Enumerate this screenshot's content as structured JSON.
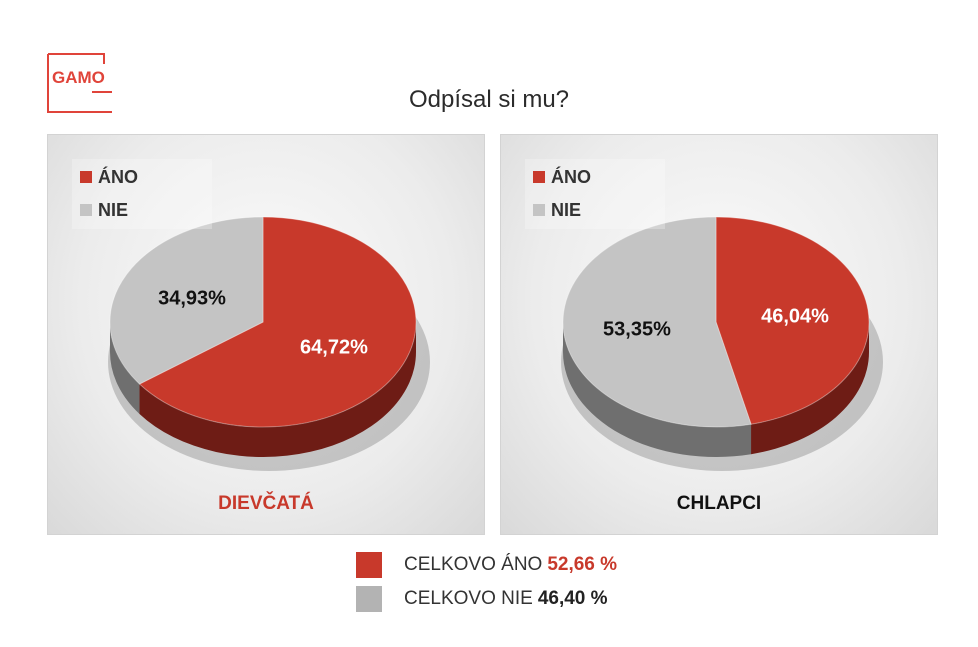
{
  "logo": {
    "text": "GAMO",
    "color": "#e0443a"
  },
  "title": "Odpísal si mu?",
  "colors": {
    "yes": "#c8392b",
    "yes_dark": "#6e1c15",
    "no": "#c4c4c4",
    "no_dark": "#6f6f6f"
  },
  "chart_data": [
    {
      "type": "pie",
      "title": "DIEVČATÁ",
      "title_color": "#c8392b",
      "legend": [
        "ÁNO",
        "NIE"
      ],
      "legend_position": "top-left",
      "labels": [
        "ÁNO",
        "NIE"
      ],
      "values": [
        64.72,
        34.93
      ],
      "value_labels": [
        "64,72%",
        "34,93%"
      ]
    },
    {
      "type": "pie",
      "title": "CHLAPCI",
      "title_color": "#111111",
      "legend": [
        "ÁNO",
        "NIE"
      ],
      "legend_position": "top-left",
      "labels": [
        "ÁNO",
        "NIE"
      ],
      "values": [
        46.04,
        53.35
      ],
      "value_labels": [
        "46,04%",
        "53,35%"
      ]
    }
  ],
  "summary": {
    "yes_text": "CELKOVO ÁNO",
    "yes_value": "52,66 %",
    "no_text": "CELKOVO NIE",
    "no_value": "46,40 %"
  }
}
